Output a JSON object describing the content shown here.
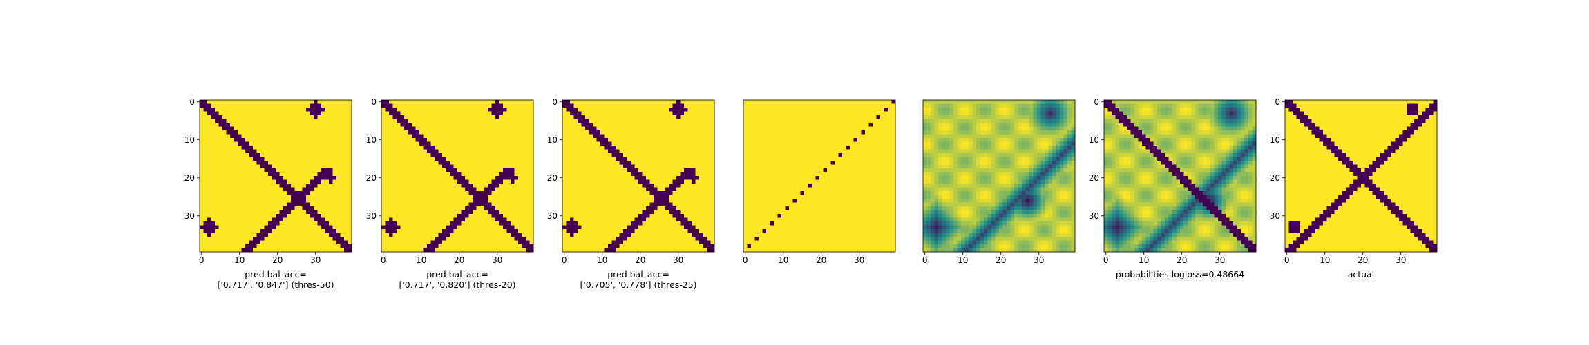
{
  "figure": {
    "colormap": {
      "low": "#440154",
      "mid": "#21918c",
      "high": "#fde725"
    },
    "panel_captions": [
      [
        "pred bal_acc=",
        "['0.717', '0.847'] (thres-50)"
      ],
      [
        "pred bal_acc=",
        "['0.717', '0.820'] (thres-20)"
      ],
      [
        "pred bal_acc=",
        "['0.705', '0.778'] (thres-25)"
      ],
      [],
      [],
      [
        "probabilities logloss=0.48664"
      ],
      [
        "actual"
      ]
    ]
  },
  "chart_data": [
    {
      "type": "heatmap",
      "kind": "binary-prediction",
      "title": "",
      "caption": "pred bal_acc= ['0.717', '0.847'] (thres-50)",
      "x_ticks": [
        0,
        10,
        20,
        30
      ],
      "y_ticks": [
        0,
        10,
        20,
        30
      ],
      "xlim": [
        0,
        39
      ],
      "ylim": [
        39,
        0
      ],
      "shape": [
        40,
        40
      ]
    },
    {
      "type": "heatmap",
      "kind": "binary-prediction",
      "title": "",
      "caption": "pred bal_acc= ['0.717', '0.820'] (thres-20)",
      "x_ticks": [
        0,
        10,
        20,
        30
      ],
      "y_ticks": [
        0,
        10,
        20,
        30
      ],
      "xlim": [
        0,
        39
      ],
      "ylim": [
        39,
        0
      ],
      "shape": [
        40,
        40
      ]
    },
    {
      "type": "heatmap",
      "kind": "binary-prediction",
      "title": "",
      "caption": "pred bal_acc= ['0.705', '0.778'] (thres-25)",
      "x_ticks": [
        0,
        10,
        20,
        30
      ],
      "y_ticks": [
        0,
        10,
        20,
        30
      ],
      "xlim": [
        0,
        39
      ],
      "ylim": [
        39,
        0
      ],
      "shape": [
        40,
        40
      ]
    },
    {
      "type": "heatmap",
      "kind": "sparse-antidiagonal",
      "title": "",
      "caption": "",
      "x_ticks": [
        0,
        10,
        20,
        30
      ],
      "y_ticks": [],
      "xlim": [
        0,
        39
      ],
      "ylim": [
        39,
        0
      ],
      "shape": [
        40,
        40
      ]
    },
    {
      "type": "heatmap",
      "kind": "continuous-probabilities",
      "title": "",
      "caption": "",
      "x_ticks": [
        0,
        10,
        20,
        30
      ],
      "y_ticks": [],
      "xlim": [
        0,
        39
      ],
      "ylim": [
        39,
        0
      ],
      "shape": [
        40,
        40
      ]
    },
    {
      "type": "heatmap",
      "kind": "probabilities-with-diagonal",
      "title": "",
      "caption": "probabilities logloss=0.48664",
      "x_ticks": [
        0,
        10,
        20,
        30
      ],
      "y_ticks": [
        0,
        10,
        20,
        30
      ],
      "xlim": [
        0,
        39
      ],
      "ylim": [
        39,
        0
      ],
      "shape": [
        40,
        40
      ]
    },
    {
      "type": "heatmap",
      "kind": "binary-actual",
      "title": "",
      "caption": "actual",
      "x_ticks": [
        0,
        10,
        20,
        30
      ],
      "y_ticks": [
        0,
        10,
        20,
        30
      ],
      "xlim": [
        0,
        39
      ],
      "ylim": [
        39,
        0
      ],
      "shape": [
        40,
        40
      ]
    }
  ]
}
